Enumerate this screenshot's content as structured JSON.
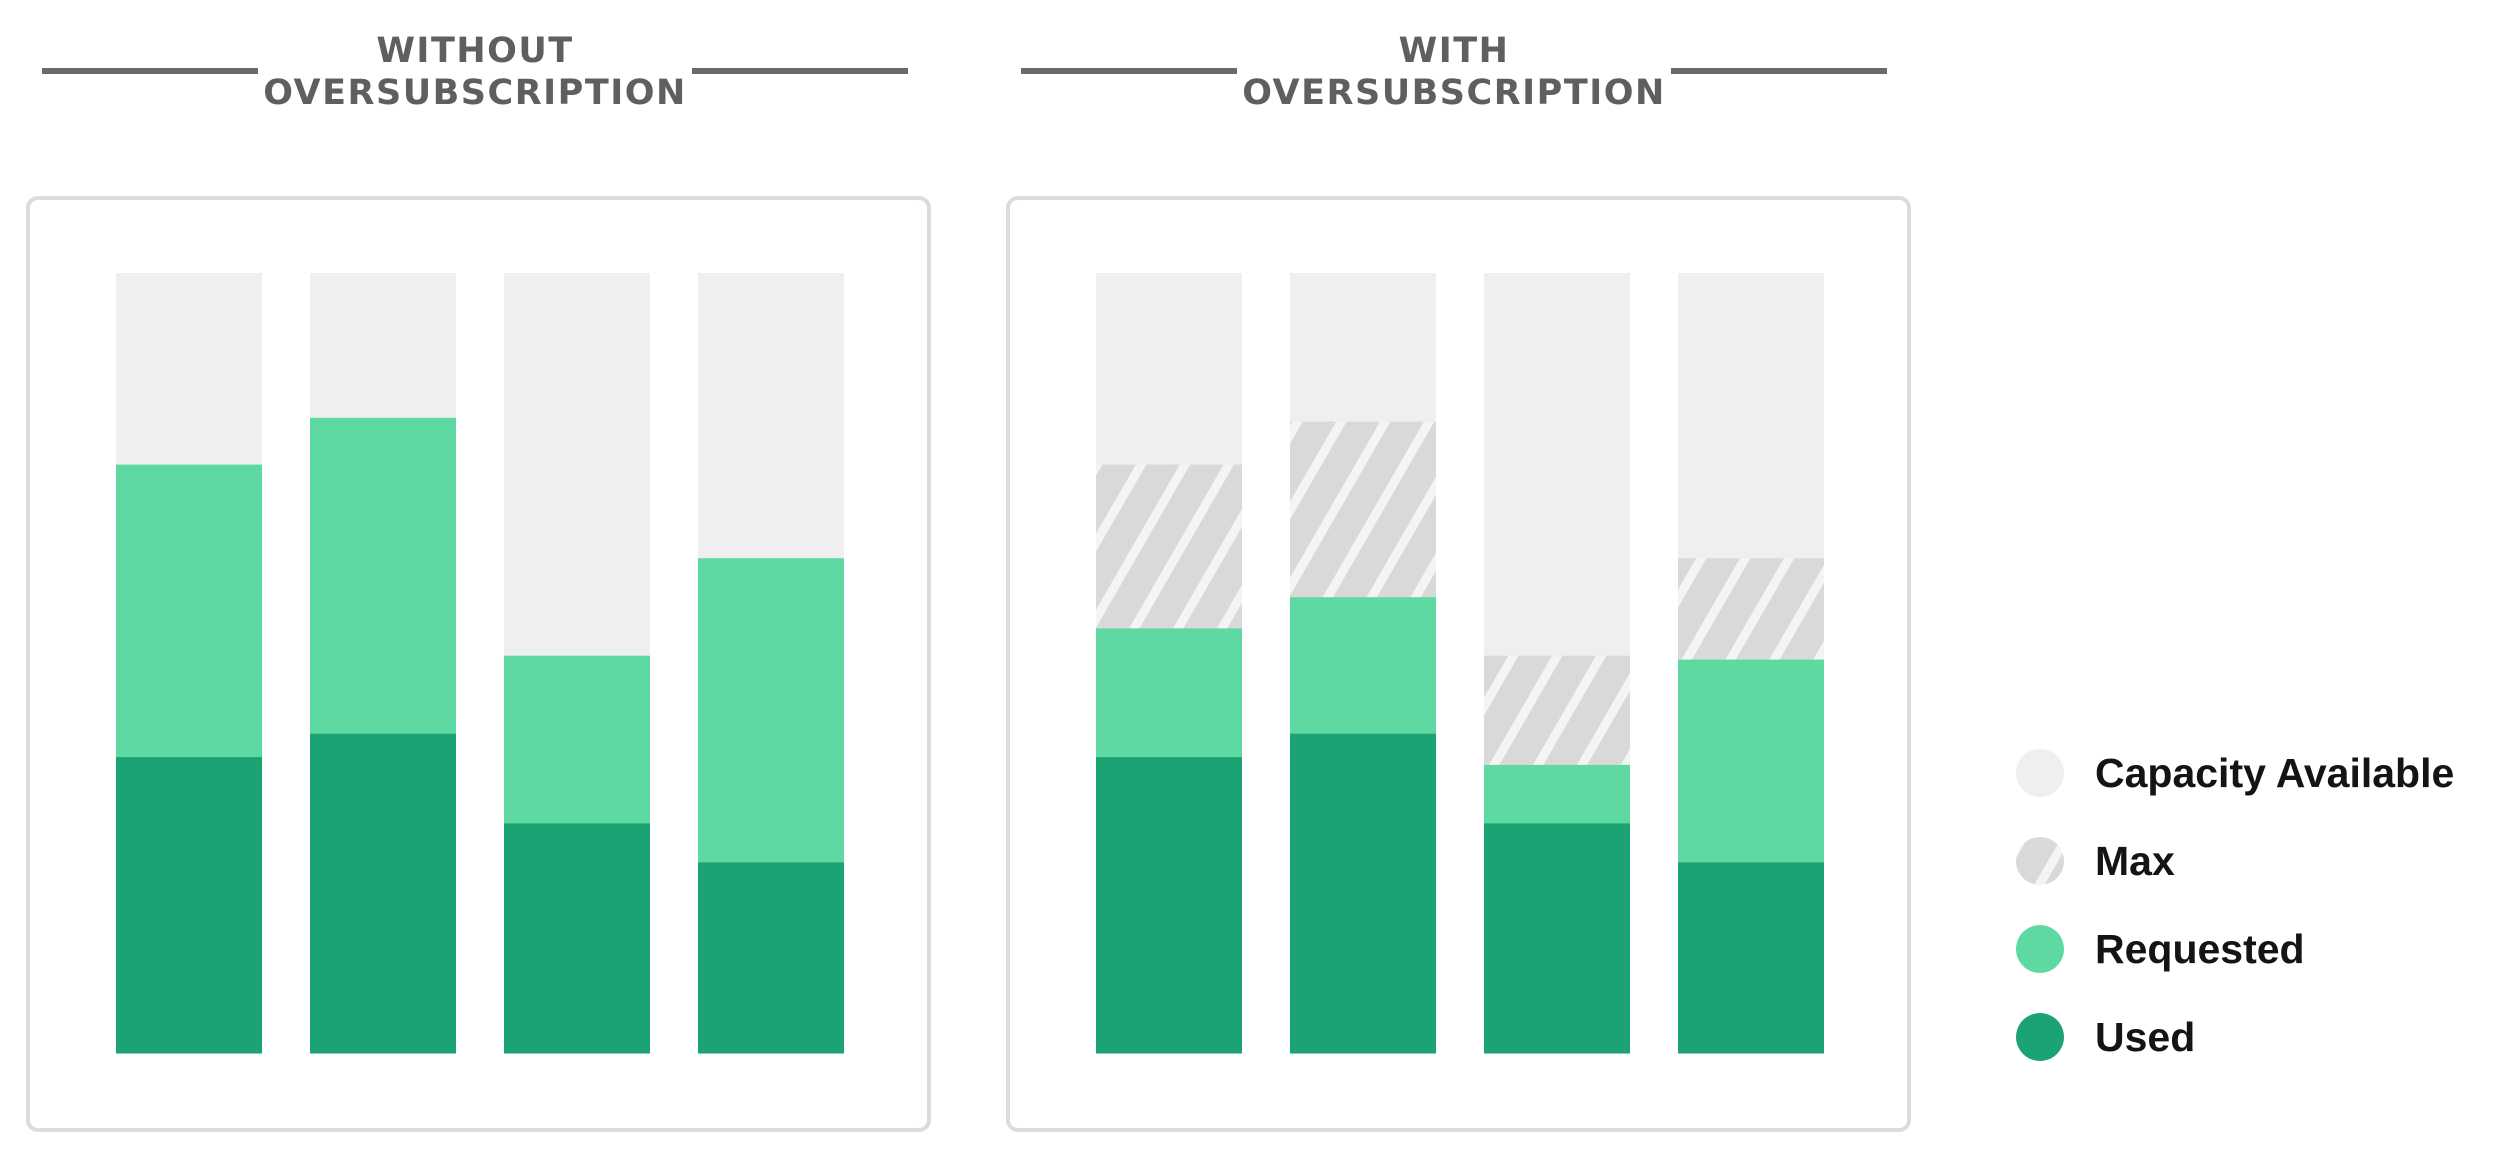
{
  "colors": {
    "capacity": "#efefef",
    "max": "#d9d9d9",
    "max_stripe": "#f4f4f4",
    "requested": "#5dd9a1",
    "used": "#1ca374",
    "title": "#5f5f5f",
    "panel_border": "#dcdcdc"
  },
  "chart_data": [
    {
      "type": "bar",
      "stacked": true,
      "title": [
        "WITHOUT",
        "OVERSUBSCRIPTION"
      ],
      "categories": [
        "",
        "",
        "",
        ""
      ],
      "ylim": [
        0,
        100
      ],
      "grid": false,
      "axes_visible": false,
      "series": [
        {
          "name": "Used",
          "values": [
            38,
            41,
            29.5,
            24.5
          ]
        },
        {
          "name": "Requested",
          "values": [
            37.5,
            40.5,
            21.5,
            39
          ]
        },
        {
          "name": "Max",
          "values": [
            0,
            0,
            0,
            0
          ]
        },
        {
          "name": "Capacity Available",
          "values": [
            24.5,
            18.5,
            49,
            36.5
          ]
        }
      ]
    },
    {
      "type": "bar",
      "stacked": true,
      "title": [
        "WITH",
        "OVERSUBSCRIPTION"
      ],
      "categories": [
        "",
        "",
        "",
        ""
      ],
      "ylim": [
        0,
        100
      ],
      "grid": false,
      "axes_visible": false,
      "series": [
        {
          "name": "Used",
          "values": [
            38,
            41,
            29.5,
            24.5
          ]
        },
        {
          "name": "Requested",
          "values": [
            16.5,
            17.5,
            7.5,
            26
          ]
        },
        {
          "name": "Max",
          "values": [
            21,
            22.5,
            14,
            13
          ]
        },
        {
          "name": "Capacity Available",
          "values": [
            24.5,
            19,
            49,
            36.5
          ]
        }
      ]
    }
  ],
  "legend": {
    "placement": "bottom-right",
    "items": [
      {
        "key": "capacity",
        "label": "Capacity Available",
        "icon": "light-grey-circle-icon"
      },
      {
        "key": "max",
        "label": "Max",
        "icon": "hatched-circle-icon"
      },
      {
        "key": "requested",
        "label": "Requested",
        "icon": "light-green-circle-icon"
      },
      {
        "key": "used",
        "label": "Used",
        "icon": "dark-green-circle-icon"
      }
    ]
  }
}
